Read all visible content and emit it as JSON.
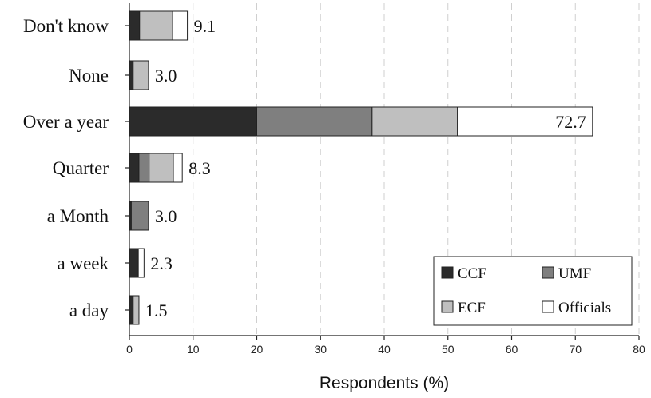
{
  "chart_data": {
    "type": "bar",
    "orientation": "horizontal",
    "stacked": true,
    "categories": [
      "Don't know",
      "None",
      "Over a year",
      "Quarter",
      "a Month",
      "a week",
      "a day"
    ],
    "series": [
      {
        "name": "CCF",
        "color": "#2b2b2b",
        "values": [
          1.6,
          0.6,
          20.0,
          1.5,
          0.3,
          1.4,
          0.6
        ]
      },
      {
        "name": "UMF",
        "color": "#7f7f7f",
        "values": [
          0.0,
          0.0,
          18.1,
          1.6,
          2.7,
          0.0,
          0.0
        ]
      },
      {
        "name": "ECF",
        "color": "#bfbfbf",
        "values": [
          5.2,
          2.4,
          13.4,
          3.8,
          0.0,
          0.0,
          0.9
        ]
      },
      {
        "name": "Officials",
        "color": "#ffffff",
        "values": [
          2.3,
          0.0,
          21.2,
          1.4,
          0.0,
          0.9,
          0.0
        ]
      }
    ],
    "totals": [
      "9.1",
      "3.0",
      "72.7",
      "8.3",
      "3.0",
      "2.3",
      "1.5"
    ],
    "xlabel": "Respondents (%)",
    "ylabel": "",
    "title": "",
    "xlim": [
      0,
      80
    ],
    "xticks": [
      "0",
      "10",
      "20",
      "30",
      "40",
      "50",
      "60",
      "70",
      "80"
    ],
    "grid": "vertical-dashed",
    "legend": "bottom-right"
  }
}
